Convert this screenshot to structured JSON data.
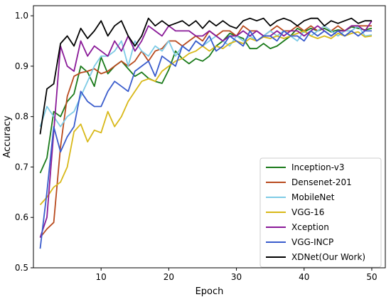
{
  "chart_data": {
    "type": "line",
    "title": "",
    "xlabel": "Epoch",
    "ylabel": "Accuracy",
    "xlim": [
      0,
      52
    ],
    "ylim": [
      0.5,
      1.02
    ],
    "xticks": [
      10,
      20,
      30,
      40,
      50
    ],
    "yticks": [
      0.5,
      0.6,
      0.7,
      0.8,
      0.9,
      1.0
    ],
    "xtick_labels": [
      "10",
      "20",
      "30",
      "40",
      "50"
    ],
    "ytick_labels": [
      "0.5",
      "0.6",
      "0.7",
      "0.8",
      "0.9",
      "1.0"
    ],
    "grid": false,
    "legend_position": "lower-right",
    "x": [
      1,
      2,
      3,
      4,
      5,
      6,
      7,
      8,
      9,
      10,
      11,
      12,
      13,
      14,
      15,
      16,
      17,
      18,
      19,
      20,
      21,
      22,
      23,
      24,
      25,
      26,
      27,
      28,
      29,
      30,
      31,
      32,
      33,
      34,
      35,
      36,
      37,
      38,
      39,
      40,
      41,
      42,
      43,
      44,
      45,
      46,
      47,
      48,
      49,
      50
    ],
    "series": [
      {
        "name": "Inception-v3",
        "color": "#1a7a1a",
        "values": [
          0.688,
          0.718,
          0.81,
          0.8,
          0.83,
          0.845,
          0.9,
          0.888,
          0.86,
          0.918,
          0.885,
          0.9,
          0.91,
          0.895,
          0.88,
          0.888,
          0.876,
          0.87,
          0.866,
          0.893,
          0.93,
          0.915,
          0.905,
          0.915,
          0.91,
          0.92,
          0.94,
          0.95,
          0.965,
          0.96,
          0.955,
          0.935,
          0.935,
          0.945,
          0.935,
          0.94,
          0.95,
          0.96,
          0.975,
          0.968,
          0.975,
          0.97,
          0.975,
          0.968,
          0.972,
          0.97,
          0.978,
          0.975,
          0.972,
          0.975
        ]
      },
      {
        "name": "Densenet-201",
        "color": "#b84a1e",
        "values": [
          0.56,
          0.577,
          0.59,
          0.74,
          0.84,
          0.88,
          0.887,
          0.89,
          0.895,
          0.885,
          0.89,
          0.9,
          0.91,
          0.9,
          0.91,
          0.93,
          0.91,
          0.93,
          0.935,
          0.95,
          0.95,
          0.94,
          0.95,
          0.96,
          0.95,
          0.97,
          0.96,
          0.97,
          0.97,
          0.96,
          0.98,
          0.97,
          0.97,
          0.96,
          0.97,
          0.98,
          0.97,
          0.97,
          0.98,
          0.97,
          0.98,
          0.97,
          0.98,
          0.97,
          0.98,
          0.97,
          0.98,
          0.98,
          0.98,
          0.98
        ]
      },
      {
        "name": "MobileNet",
        "color": "#7ecbe6",
        "values": [
          0.78,
          0.82,
          0.8,
          0.78,
          0.8,
          0.81,
          0.84,
          0.87,
          0.9,
          0.92,
          0.92,
          0.93,
          0.95,
          0.9,
          0.95,
          0.93,
          0.92,
          0.94,
          0.93,
          0.95,
          0.92,
          0.94,
          0.93,
          0.95,
          0.94,
          0.95,
          0.96,
          0.95,
          0.94,
          0.96,
          0.95,
          0.96,
          0.95,
          0.96,
          0.97,
          0.96,
          0.97,
          0.96,
          0.95,
          0.97,
          0.96,
          0.97,
          0.98,
          0.97,
          0.96,
          0.97,
          0.97,
          0.98,
          0.96,
          0.962
        ]
      },
      {
        "name": "VGG-16",
        "color": "#d8b818",
        "values": [
          0.625,
          0.64,
          0.66,
          0.67,
          0.7,
          0.77,
          0.785,
          0.75,
          0.773,
          0.768,
          0.81,
          0.78,
          0.8,
          0.83,
          0.85,
          0.87,
          0.875,
          0.87,
          0.89,
          0.9,
          0.91,
          0.915,
          0.925,
          0.93,
          0.94,
          0.93,
          0.94,
          0.935,
          0.945,
          0.95,
          0.945,
          0.955,
          0.95,
          0.958,
          0.955,
          0.96,
          0.955,
          0.96,
          0.965,
          0.97,
          0.96,
          0.955,
          0.96,
          0.955,
          0.965,
          0.96,
          0.965,
          0.968,
          0.958,
          0.96
        ]
      },
      {
        "name": "Xception",
        "color": "#8a1a98",
        "values": [
          0.56,
          0.6,
          0.77,
          0.94,
          0.9,
          0.89,
          0.95,
          0.92,
          0.94,
          0.93,
          0.92,
          0.95,
          0.93,
          0.96,
          0.93,
          0.95,
          0.98,
          0.97,
          0.96,
          0.98,
          0.97,
          0.97,
          0.97,
          0.96,
          0.96,
          0.97,
          0.96,
          0.95,
          0.96,
          0.96,
          0.97,
          0.96,
          0.97,
          0.96,
          0.96,
          0.97,
          0.96,
          0.97,
          0.97,
          0.96,
          0.97,
          0.98,
          0.97,
          0.96,
          0.97,
          0.97,
          0.98,
          0.98,
          0.97,
          0.99
        ]
      },
      {
        "name": "VGG-INCP",
        "color": "#3a5ccc",
        "values": [
          0.538,
          0.65,
          0.78,
          0.73,
          0.76,
          0.78,
          0.85,
          0.83,
          0.82,
          0.82,
          0.85,
          0.87,
          0.86,
          0.85,
          0.89,
          0.9,
          0.91,
          0.88,
          0.92,
          0.91,
          0.9,
          0.94,
          0.93,
          0.95,
          0.94,
          0.96,
          0.93,
          0.94,
          0.96,
          0.95,
          0.94,
          0.97,
          0.95,
          0.96,
          0.96,
          0.95,
          0.97,
          0.96,
          0.96,
          0.95,
          0.97,
          0.96,
          0.97,
          0.96,
          0.97,
          0.96,
          0.97,
          0.96,
          0.97,
          0.97
        ]
      },
      {
        "name": "XDNet(Our Work)",
        "color": "#000000",
        "values": [
          0.765,
          0.855,
          0.865,
          0.945,
          0.96,
          0.94,
          0.975,
          0.955,
          0.97,
          0.99,
          0.96,
          0.98,
          0.99,
          0.96,
          0.94,
          0.96,
          0.995,
          0.98,
          0.99,
          0.98,
          0.985,
          0.99,
          0.98,
          0.99,
          0.975,
          0.99,
          0.98,
          0.99,
          0.98,
          0.975,
          0.99,
          0.995,
          0.99,
          0.995,
          0.98,
          0.99,
          0.995,
          0.99,
          0.98,
          0.99,
          0.995,
          0.995,
          0.98,
          0.99,
          0.985,
          0.99,
          0.995,
          0.985,
          0.99,
          0.99
        ]
      }
    ]
  }
}
